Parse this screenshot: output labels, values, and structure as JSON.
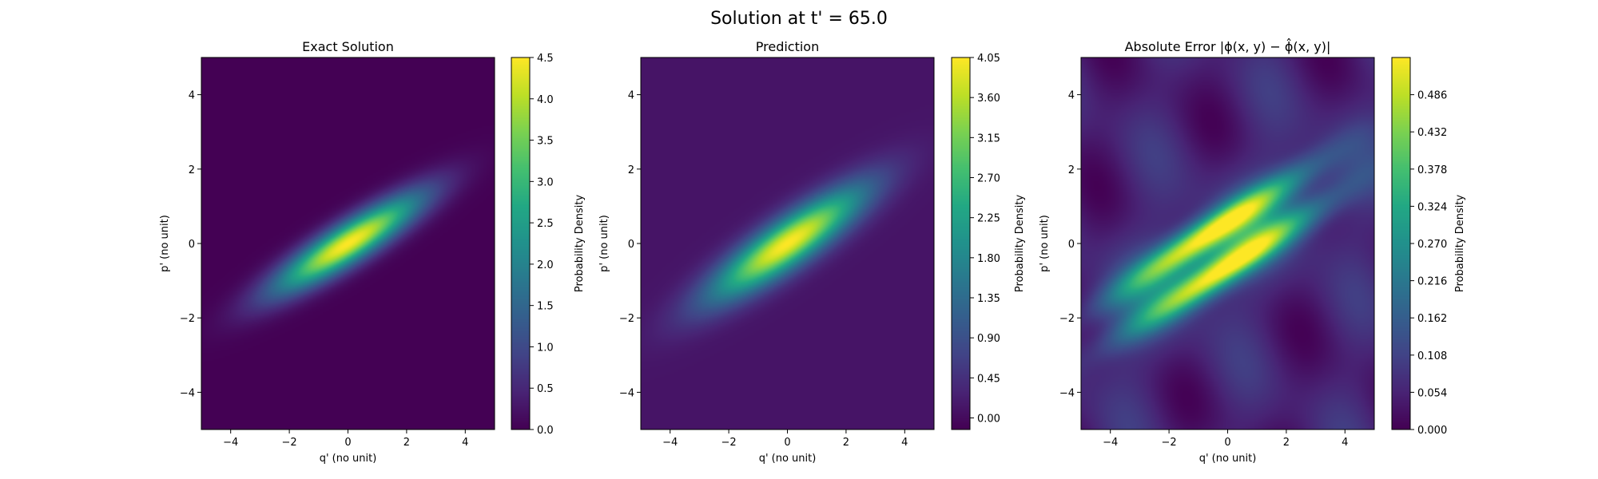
{
  "figure": {
    "suptitle": "Solution at t' = 65.0"
  },
  "chart_data": [
    {
      "type": "heatmap",
      "title": "Exact Solution",
      "xlabel": "q' (no unit)",
      "ylabel": "p' (no unit)",
      "xlim": [
        -5,
        5
      ],
      "ylim": [
        -5,
        5
      ],
      "xticks": [
        -4,
        -2,
        0,
        2,
        4
      ],
      "yticks": [
        -4,
        -2,
        0,
        2,
        4
      ],
      "xticklabels": [
        "−4",
        "−2",
        "0",
        "2",
        "4"
      ],
      "yticklabels": [
        "−4",
        "−2",
        "0",
        "2",
        "4"
      ],
      "colormap": "viridis",
      "field": {
        "kind": "gaussian",
        "center": [
          0,
          0
        ],
        "angle_deg": 26,
        "sigma_major": 1.9,
        "sigma_minor": 0.38,
        "peak": 4.5
      },
      "colorbar": {
        "label": "Probability Density",
        "range": [
          0.0,
          4.5
        ],
        "ticks": [
          0.0,
          0.5,
          1.0,
          1.5,
          2.0,
          2.5,
          3.0,
          3.5,
          4.0,
          4.5
        ],
        "ticklabels": [
          "0.0",
          "0.5",
          "1.0",
          "1.5",
          "2.0",
          "2.5",
          "3.0",
          "3.5",
          "4.0",
          "4.5"
        ]
      }
    },
    {
      "type": "heatmap",
      "title": "Prediction",
      "xlabel": "q' (no unit)",
      "ylabel": "p' (no unit)",
      "xlim": [
        -5,
        5
      ],
      "ylim": [
        -5,
        5
      ],
      "xticks": [
        -4,
        -2,
        0,
        2,
        4
      ],
      "yticks": [
        -4,
        -2,
        0,
        2,
        4
      ],
      "xticklabels": [
        "−4",
        "−2",
        "0",
        "2",
        "4"
      ],
      "yticklabels": [
        "−4",
        "−2",
        "0",
        "2",
        "4"
      ],
      "colormap": "viridis",
      "field": {
        "kind": "gaussian",
        "center": [
          0,
          0
        ],
        "angle_deg": 28,
        "sigma_major": 2.0,
        "sigma_minor": 0.45,
        "peak": 3.95,
        "offset": 0.1
      },
      "colorbar": {
        "label": "Probability Density",
        "range": [
          -0.13,
          4.05
        ],
        "ticks": [
          0.0,
          0.45,
          0.9,
          1.35,
          1.8,
          2.25,
          2.7,
          3.15,
          3.6,
          4.05
        ],
        "ticklabels": [
          "0.00",
          "0.45",
          "0.90",
          "1.35",
          "1.80",
          "2.25",
          "2.70",
          "3.15",
          "3.60",
          "4.05"
        ]
      }
    },
    {
      "type": "heatmap",
      "title": "Absolute Error |ϕ(x, y) − ϕ̂(x, y)|",
      "xlabel": "q' (no unit)",
      "ylabel": "p' (no unit)",
      "xlim": [
        -5,
        5
      ],
      "ylim": [
        -5,
        5
      ],
      "xticks": [
        -4,
        -2,
        0,
        2,
        4
      ],
      "yticks": [
        -4,
        -2,
        0,
        2,
        4
      ],
      "xticklabels": [
        "−4",
        "−2",
        "0",
        "2",
        "4"
      ],
      "yticklabels": [
        "−4",
        "−2",
        "0",
        "2",
        "4"
      ],
      "colormap": "viridis",
      "field": {
        "kind": "error-bands",
        "angle_deg": 27,
        "peak": 0.53
      },
      "colorbar": {
        "label": "Probability Density",
        "range": [
          0.0,
          0.54
        ],
        "ticks": [
          0.0,
          0.054,
          0.108,
          0.162,
          0.216,
          0.27,
          0.324,
          0.378,
          0.432,
          0.486
        ],
        "ticklabels": [
          "0.000",
          "0.054",
          "0.108",
          "0.162",
          "0.216",
          "0.270",
          "0.324",
          "0.378",
          "0.432",
          "0.486"
        ]
      }
    }
  ]
}
